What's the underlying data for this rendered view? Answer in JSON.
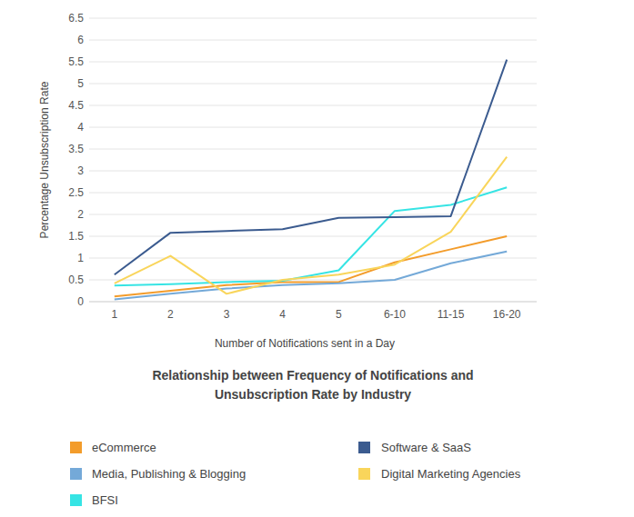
{
  "chart_data": {
    "type": "line",
    "title": "Relationship between Frequency of Notifications and Unsubscription Rate by Industry",
    "x_label": "Number of Notifications sent in a Day",
    "y_label": "Percentage Unsubscription Rate",
    "categories": [
      "1",
      "2",
      "3",
      "4",
      "5",
      "6-10",
      "11-15",
      "16-20"
    ],
    "series": [
      {
        "name": "eCommerce",
        "color": "#f39c2b",
        "values": [
          0.12,
          0.25,
          0.38,
          0.45,
          0.45,
          0.9,
          1.2,
          1.5
        ]
      },
      {
        "name": "Media, Publishing & Blogging",
        "color": "#74a9d8",
        "values": [
          0.05,
          0.18,
          0.3,
          0.38,
          0.42,
          0.5,
          0.88,
          1.15
        ]
      },
      {
        "name": "BFSI",
        "color": "#36e4e4",
        "values": [
          0.37,
          0.4,
          0.45,
          0.48,
          0.72,
          2.08,
          2.22,
          2.62
        ]
      },
      {
        "name": "Software & SaaS",
        "color": "#3b5b8f",
        "values": [
          0.62,
          1.58,
          1.62,
          1.66,
          1.92,
          1.94,
          1.96,
          5.55
        ]
      },
      {
        "name": "Digital Marketing Agencies",
        "color": "#f9d55b",
        "values": [
          0.42,
          1.05,
          0.18,
          0.5,
          0.62,
          0.85,
          1.6,
          3.32
        ]
      }
    ],
    "ylim": [
      0,
      6.5
    ],
    "yticks": [
      0,
      0.5,
      1,
      1.5,
      2,
      2.5,
      3,
      3.5,
      4,
      4.5,
      5,
      5.5,
      6,
      6.5
    ],
    "grid": true,
    "legend": "bottom"
  }
}
